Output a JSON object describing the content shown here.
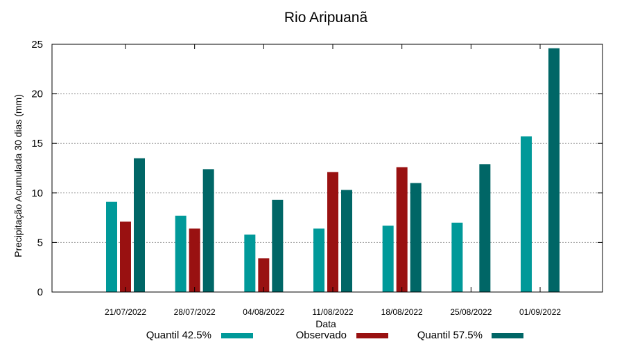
{
  "chart_data": {
    "type": "bar",
    "title": "Rio Aripuanã",
    "xlabel": "Data",
    "ylabel": "Precipitação Acumulada 30 dias (mm)",
    "ylim": [
      0,
      25
    ],
    "yticks": [
      0,
      5,
      10,
      15,
      20,
      25
    ],
    "grid": true,
    "legend_position": "bottom",
    "categories": [
      "21/07/2022",
      "28/07/2022",
      "04/08/2022",
      "11/08/2022",
      "18/08/2022",
      "25/08/2022",
      "01/09/2022"
    ],
    "series": [
      {
        "name": "Quantil 42.5%",
        "color": "#009999",
        "values": [
          9.1,
          7.7,
          5.8,
          6.4,
          6.7,
          7.0,
          15.7
        ]
      },
      {
        "name": "Observado",
        "color": "#991111",
        "values": [
          7.1,
          6.4,
          3.4,
          12.1,
          12.6,
          null,
          null
        ]
      },
      {
        "name": "Quantil 57.5%",
        "color": "#006666",
        "values": [
          13.5,
          12.4,
          9.3,
          10.3,
          11.0,
          12.9,
          24.6
        ]
      }
    ]
  }
}
